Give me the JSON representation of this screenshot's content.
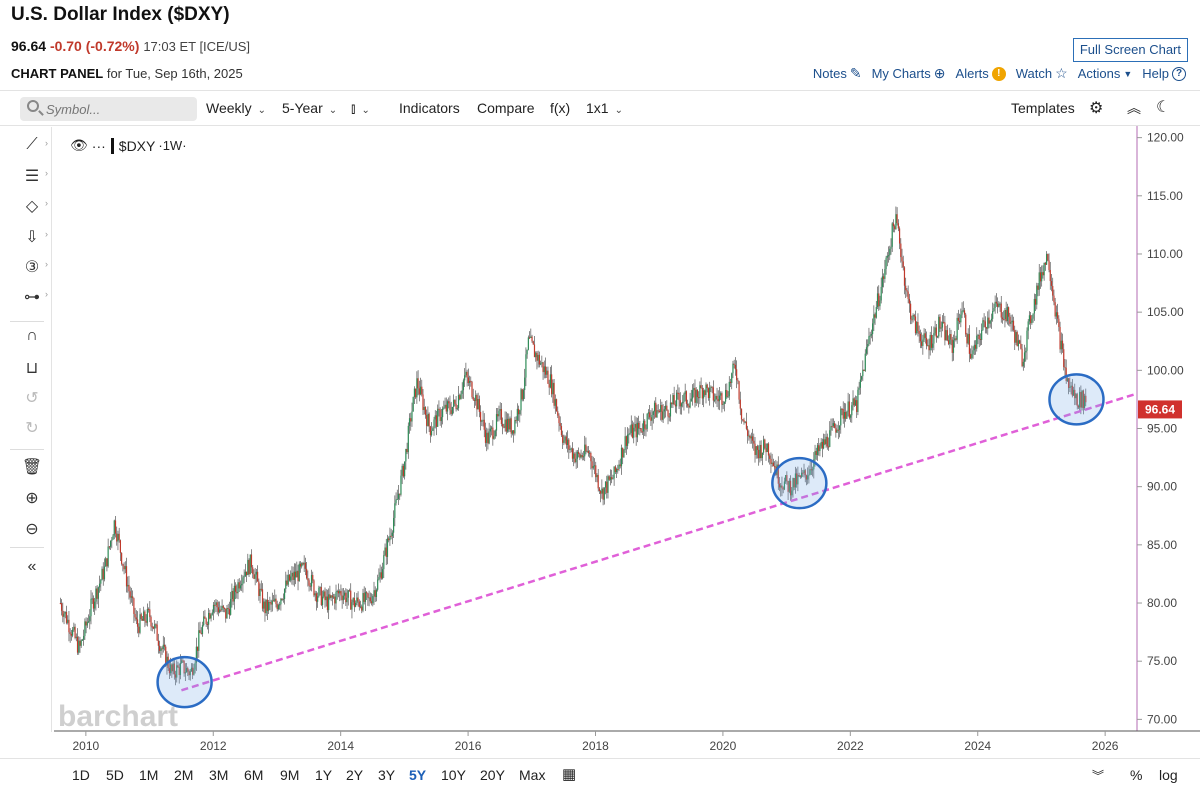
{
  "header": {
    "title": "U.S. Dollar Index ($DXY)",
    "last": "96.64",
    "change": "-0.70 (-0.72%)",
    "meta": "17:03 ET [ICE/US]",
    "fullscreen": "Full Screen Chart",
    "panel_label": "CHART PANEL",
    "panel_date": "for Tue, Sep 16th, 2025"
  },
  "links": {
    "notes": "Notes",
    "mycharts": "My Charts",
    "alerts": "Alerts",
    "watch": "Watch",
    "actions": "Actions",
    "help": "Help"
  },
  "toolbar": {
    "symbol_placeholder": "Symbol...",
    "interval": "Weekly",
    "period": "5-Year",
    "indicators": "Indicators",
    "compare": "Compare",
    "fx": "f(x)",
    "layout": "1x1",
    "templates": "Templates"
  },
  "legend": {
    "symbol": "$DXY",
    "interval": "·1W·"
  },
  "watermark": "barchart",
  "range_buttons": [
    "1D",
    "5D",
    "1M",
    "2M",
    "3M",
    "6M",
    "9M",
    "1Y",
    "2Y",
    "3Y",
    "5Y",
    "10Y",
    "20Y",
    "Max"
  ],
  "active_range": "5Y",
  "scale_buttons": {
    "pct": "%",
    "log": "log"
  },
  "colors": {
    "up": "#2e8b57",
    "down": "#c0392b",
    "trendline": "#e060d8",
    "circle": "#2b6cc4",
    "price_tag": "#d0312d"
  },
  "chart_data": {
    "type": "candlestick",
    "title": "U.S. Dollar Index ($DXY)",
    "xlabel": "",
    "ylabel": "",
    "ylim": [
      69,
      121
    ],
    "xlim": [
      2009.5,
      2026.5
    ],
    "y_ticks": [
      "70.00",
      "75.00",
      "80.00",
      "85.00",
      "90.00",
      "95.00",
      "100.00",
      "105.00",
      "110.00",
      "115.00",
      "120.00"
    ],
    "x_ticks": [
      "2010",
      "2012",
      "2014",
      "2016",
      "2018",
      "2020",
      "2022",
      "2024",
      "2026"
    ],
    "last_price": 96.64,
    "series": [
      {
        "name": "$DXY weekly close (approx.)",
        "x": [
          2009.6,
          2009.9,
          2010.1,
          2010.3,
          2010.45,
          2010.6,
          2010.8,
          2011.0,
          2011.2,
          2011.35,
          2011.5,
          2011.65,
          2011.8,
          2012.0,
          2012.2,
          2012.45,
          2012.6,
          2012.8,
          2013.0,
          2013.2,
          2013.45,
          2013.6,
          2013.8,
          2014.0,
          2014.2,
          2014.45,
          2014.6,
          2014.8,
          2015.0,
          2015.1,
          2015.2,
          2015.4,
          2015.6,
          2015.8,
          2015.95,
          2016.1,
          2016.3,
          2016.5,
          2016.7,
          2016.85,
          2016.95,
          2017.1,
          2017.3,
          2017.5,
          2017.7,
          2017.9,
          2018.1,
          2018.3,
          2018.5,
          2018.7,
          2018.9,
          2019.1,
          2019.3,
          2019.5,
          2019.7,
          2019.9,
          2020.05,
          2020.2,
          2020.3,
          2020.5,
          2020.7,
          2020.9,
          2021.05,
          2021.3,
          2021.5,
          2021.7,
          2021.9,
          2022.1,
          2022.3,
          2022.5,
          2022.7,
          2022.75,
          2022.9,
          2023.0,
          2023.2,
          2023.4,
          2023.6,
          2023.75,
          2023.9,
          2024.1,
          2024.3,
          2024.5,
          2024.7,
          2024.85,
          2025.0,
          2025.1,
          2025.25,
          2025.4,
          2025.55,
          2025.7
        ],
        "close": [
          80.0,
          76.0,
          80.0,
          83.0,
          87.0,
          83.0,
          78.0,
          79.0,
          76.0,
          74.0,
          74.5,
          74.0,
          77.5,
          80.0,
          79.0,
          82.5,
          83.5,
          79.5,
          80.0,
          82.0,
          83.0,
          81.0,
          80.0,
          81.0,
          80.0,
          80.2,
          82.0,
          86.5,
          92.0,
          96.0,
          99.0,
          95.0,
          96.5,
          97.0,
          99.5,
          98.0,
          94.0,
          96.0,
          95.0,
          98.0,
          102.5,
          101.0,
          99.0,
          94.0,
          92.5,
          93.0,
          89.5,
          91.0,
          94.5,
          95.0,
          96.5,
          96.5,
          97.5,
          97.5,
          98.5,
          97.5,
          98.0,
          100.5,
          96.0,
          93.0,
          93.5,
          90.5,
          90.0,
          91.0,
          93.0,
          94.5,
          96.5,
          97.0,
          103.0,
          107.5,
          113.0,
          112.0,
          106.0,
          104.0,
          102.0,
          104.0,
          102.0,
          105.5,
          101.0,
          104.0,
          105.5,
          104.5,
          101.0,
          105.0,
          108.5,
          110.0,
          104.0,
          99.0,
          97.5,
          97.5
        ]
      }
    ],
    "trendline": {
      "from": [
        2011.5,
        72.5
      ],
      "to": [
        2026.5,
        98.0
      ]
    },
    "highlights": [
      {
        "x": 2011.55,
        "y": 73.2
      },
      {
        "x": 2021.2,
        "y": 90.3
      },
      {
        "x": 2025.55,
        "y": 97.5
      }
    ]
  }
}
